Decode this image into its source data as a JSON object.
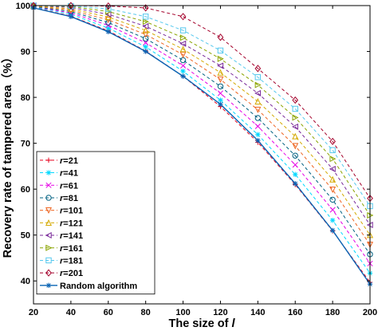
{
  "chart_data": {
    "type": "line",
    "xlabel": "The size of ",
    "xlabel_var": "l",
    "ylabel": "Recovery rate of tampered area（%）",
    "xlim": [
      20,
      200
    ],
    "ylim": [
      35,
      100
    ],
    "x": [
      20,
      40,
      60,
      80,
      100,
      120,
      140,
      160,
      180,
      200
    ],
    "xticks": [
      "20",
      "40",
      "60",
      "80",
      "100",
      "120",
      "140",
      "160",
      "180",
      "200"
    ],
    "yticks": [
      "40",
      "50",
      "60",
      "70",
      "80",
      "90",
      "100"
    ],
    "yticks_values": [
      40,
      50,
      60,
      70,
      80,
      90,
      100
    ],
    "grid": false,
    "legend_position": "lower-left",
    "series": [
      {
        "name": "r=21",
        "var": "r",
        "value": "=21",
        "color": "#e8001c",
        "marker": "plus",
        "values": [
          99.6,
          97.7,
          94.5,
          90.1,
          84.6,
          78.0,
          70.2,
          61.0,
          50.9,
          39.7
        ]
      },
      {
        "name": "r=41",
        "var": "r",
        "value": "=41",
        "color": "#00d8ff",
        "marker": "star",
        "values": [
          99.7,
          98.1,
          95.1,
          91.0,
          85.7,
          79.4,
          71.9,
          63.2,
          53.2,
          41.7
        ]
      },
      {
        "name": "r=61",
        "var": "r",
        "value": "=61",
        "color": "#e600e6",
        "marker": "cross",
        "values": [
          99.8,
          98.4,
          95.7,
          91.9,
          86.9,
          80.9,
          73.7,
          65.3,
          55.5,
          43.8
        ]
      },
      {
        "name": "r=81",
        "var": "r",
        "value": "=81",
        "color": "#006080",
        "marker": "circle",
        "values": [
          99.8,
          98.7,
          96.3,
          92.8,
          88.1,
          82.4,
          75.5,
          67.3,
          57.7,
          45.8
        ]
      },
      {
        "name": "r=101",
        "var": "r",
        "value": "=101",
        "color": "#ee6622",
        "marker": "triv",
        "values": [
          99.9,
          99.0,
          96.9,
          93.7,
          89.3,
          83.9,
          77.3,
          69.4,
          59.9,
          47.9
        ]
      },
      {
        "name": "r=121",
        "var": "r",
        "value": "=121",
        "color": "#d4a900",
        "marker": "tri",
        "values": [
          99.9,
          99.3,
          97.5,
          94.6,
          90.5,
          85.4,
          79.1,
          71.5,
          62.1,
          50.0
        ]
      },
      {
        "name": "r=141",
        "var": "r",
        "value": "=141",
        "color": "#7a2a9a",
        "marker": "trileft",
        "values": [
          100,
          99.6,
          98.1,
          95.5,
          91.7,
          86.9,
          80.9,
          73.6,
          64.4,
          52.2
        ]
      },
      {
        "name": "r=161",
        "var": "r",
        "value": "=161",
        "color": "#8aa400",
        "marker": "triright",
        "values": [
          100,
          99.8,
          98.7,
          96.5,
          93.0,
          88.4,
          82.7,
          75.6,
          66.6,
          54.3
        ]
      },
      {
        "name": "r=181",
        "var": "r",
        "value": "=181",
        "color": "#55c8ee",
        "marker": "square",
        "values": [
          100,
          99.9,
          99.3,
          97.6,
          94.6,
          90.2,
          84.4,
          77.5,
          68.5,
          56.3
        ]
      },
      {
        "name": "r=201",
        "var": "r",
        "value": "=201",
        "color": "#a4002a",
        "marker": "diamond",
        "values": [
          100,
          100,
          99.9,
          99.5,
          97.6,
          93.1,
          86.3,
          79.4,
          70.4,
          58.0
        ]
      },
      {
        "name": "Random algorithm",
        "color": "#0a64b4",
        "marker": "asterisk",
        "solid": true,
        "values": [
          99.5,
          97.6,
          94.3,
          90.0,
          84.6,
          78.5,
          70.6,
          61.2,
          51.0,
          39.3
        ]
      }
    ]
  }
}
